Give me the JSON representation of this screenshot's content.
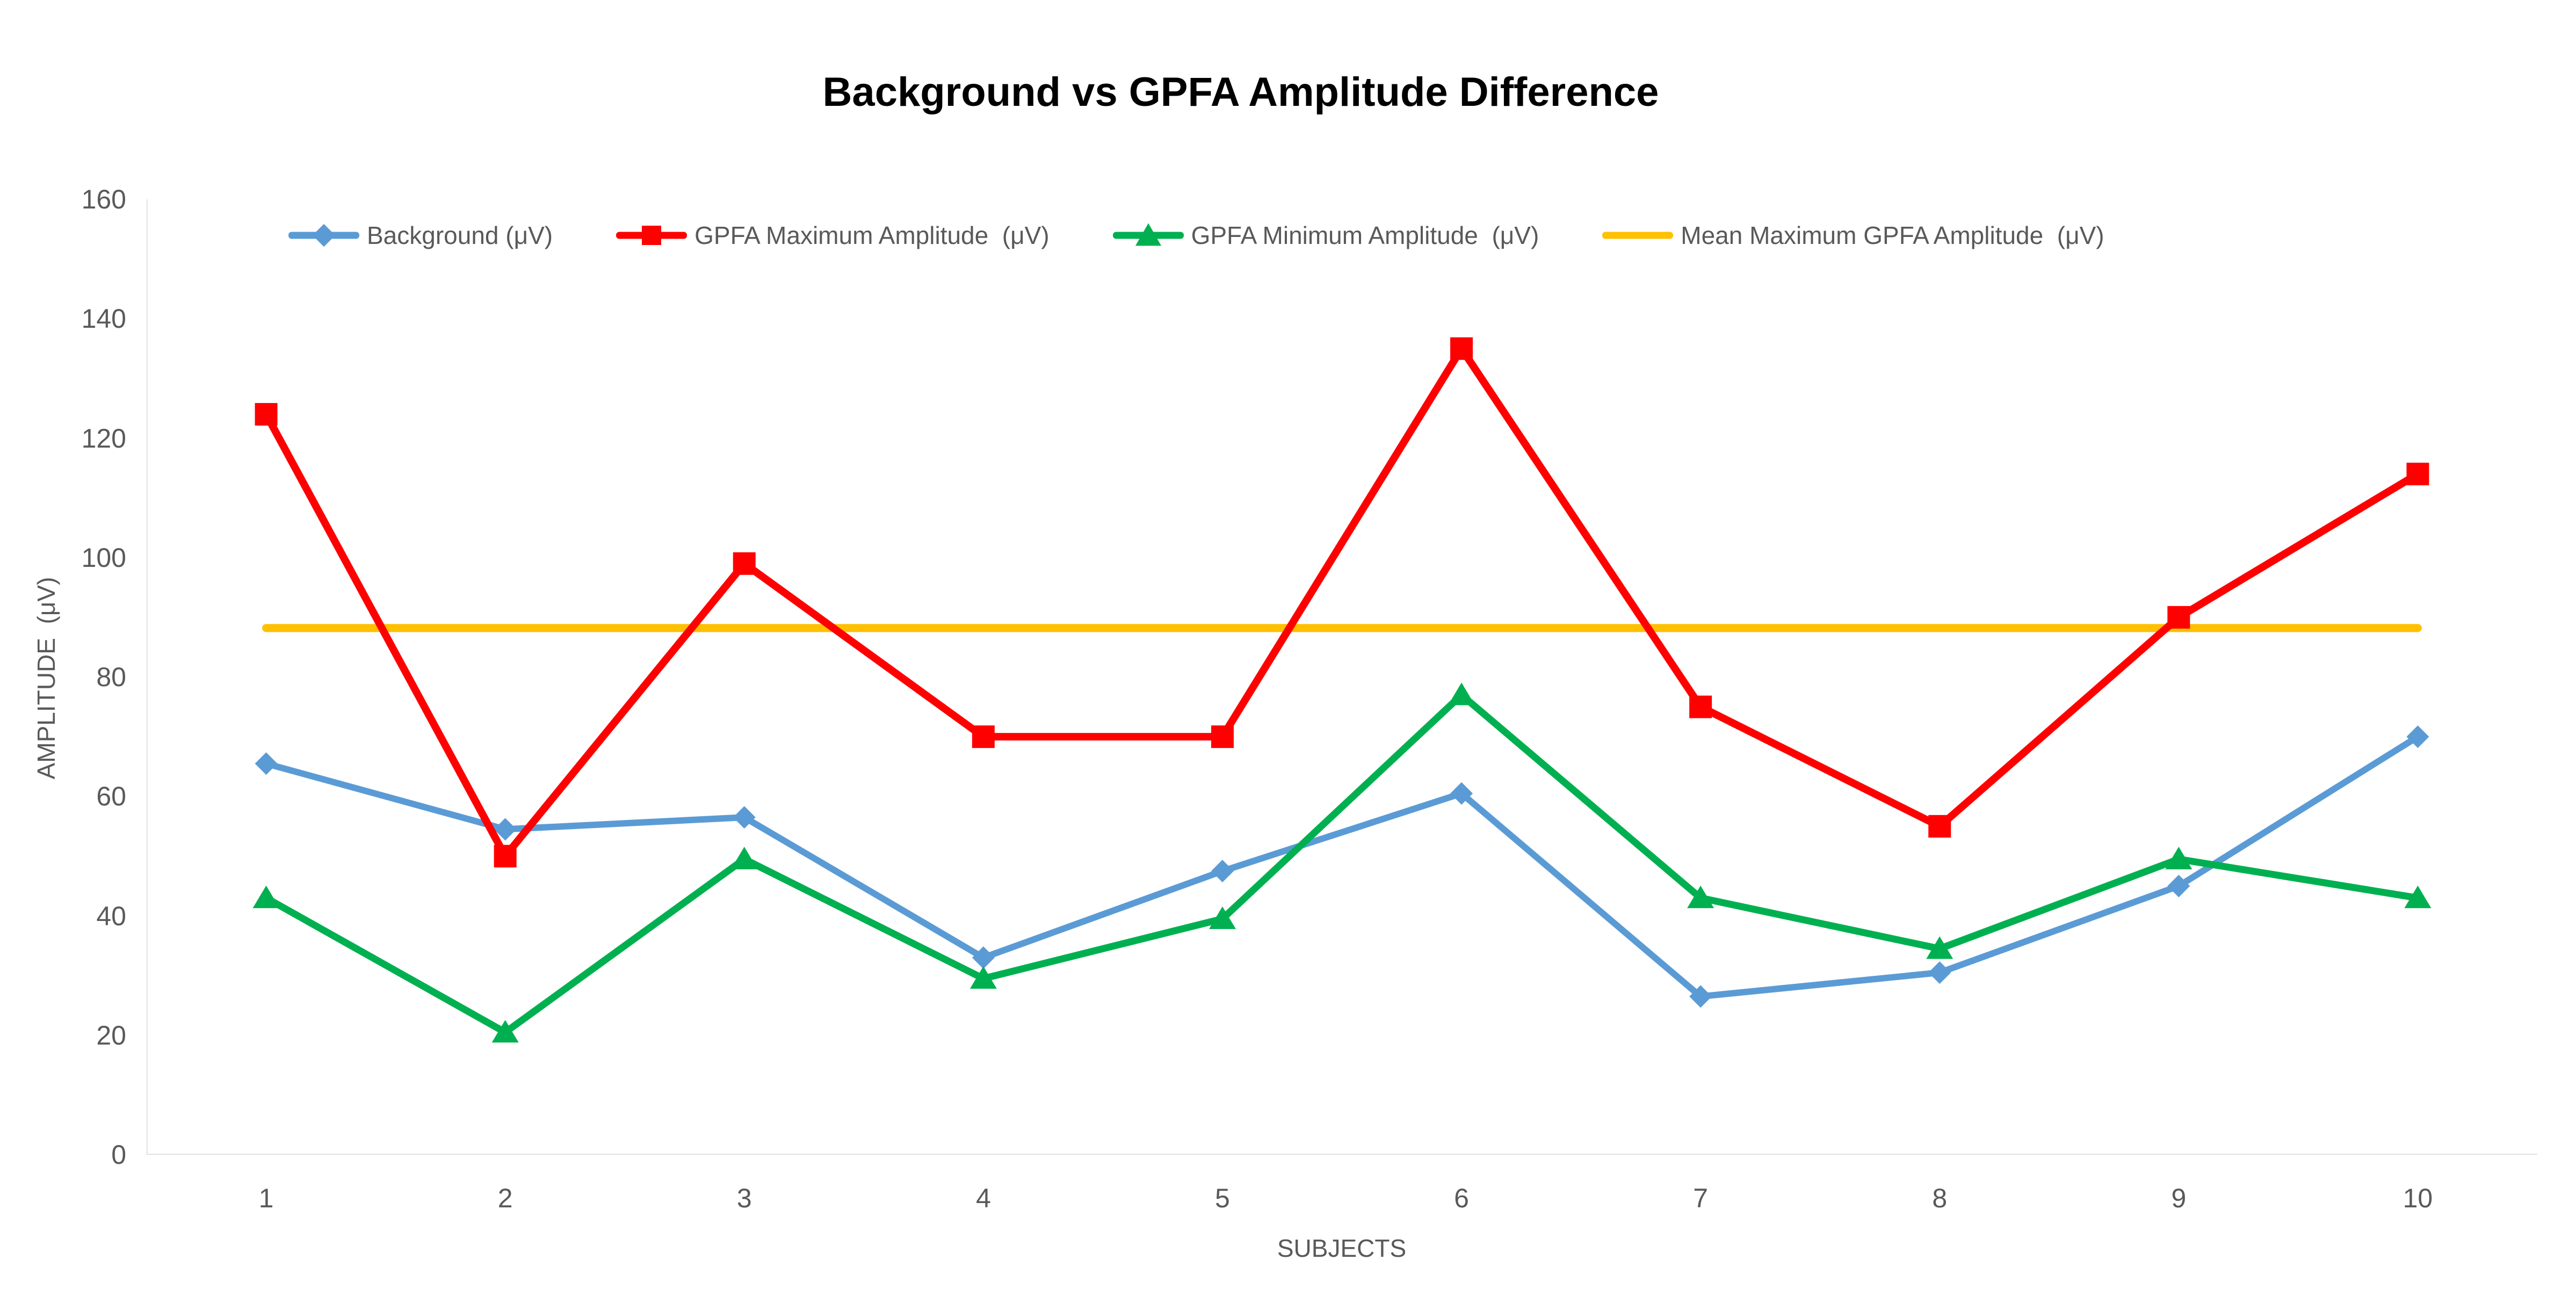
{
  "title": "Background vs GPFA Amplitude Difference",
  "chart_data": {
    "type": "line",
    "title": "Background vs GPFA Amplitude Difference",
    "xlabel": "SUBJECTS",
    "ylabel": "AMPLITUDE  (μV)",
    "categories": [
      "1",
      "2",
      "3",
      "4",
      "5",
      "6",
      "7",
      "8",
      "9",
      "10"
    ],
    "ylim": [
      0,
      160
    ],
    "ytick_step": 20,
    "grid": false,
    "legend_position": "top",
    "background_color": "#FFFFFF",
    "axis_line_color": "#D9D9D9",
    "tick_text_color": "#595959",
    "title_color": "#000000",
    "series": [
      {
        "name": "Background (μV)",
        "color": "#5B9BD5",
        "marker": "diamond",
        "line_width": 12,
        "values": [
          65.5,
          54.5,
          56.5,
          33,
          47.5,
          60.5,
          26.5,
          30.5,
          45,
          70
        ]
      },
      {
        "name": "GPFA Maximum Amplitude  (μV)",
        "color": "#FF0000",
        "marker": "square",
        "line_width": 14,
        "values": [
          124,
          50,
          99,
          70,
          70,
          135,
          75,
          55,
          90,
          114
        ]
      },
      {
        "name": "GPFA Minimum Amplitude  (μV)",
        "color": "#00B050",
        "marker": "triangle",
        "line_width": 13,
        "values": [
          43,
          20.5,
          49.5,
          29.5,
          39.5,
          77,
          43,
          34.5,
          49.5,
          43
        ]
      },
      {
        "name": "Mean Maximum GPFA Amplitude  (μV)",
        "color": "#FFC000",
        "marker": "none",
        "line_width": 15,
        "values": [
          88.2,
          88.2,
          88.2,
          88.2,
          88.2,
          88.2,
          88.2,
          88.2,
          88.2,
          88.2
        ]
      }
    ]
  }
}
